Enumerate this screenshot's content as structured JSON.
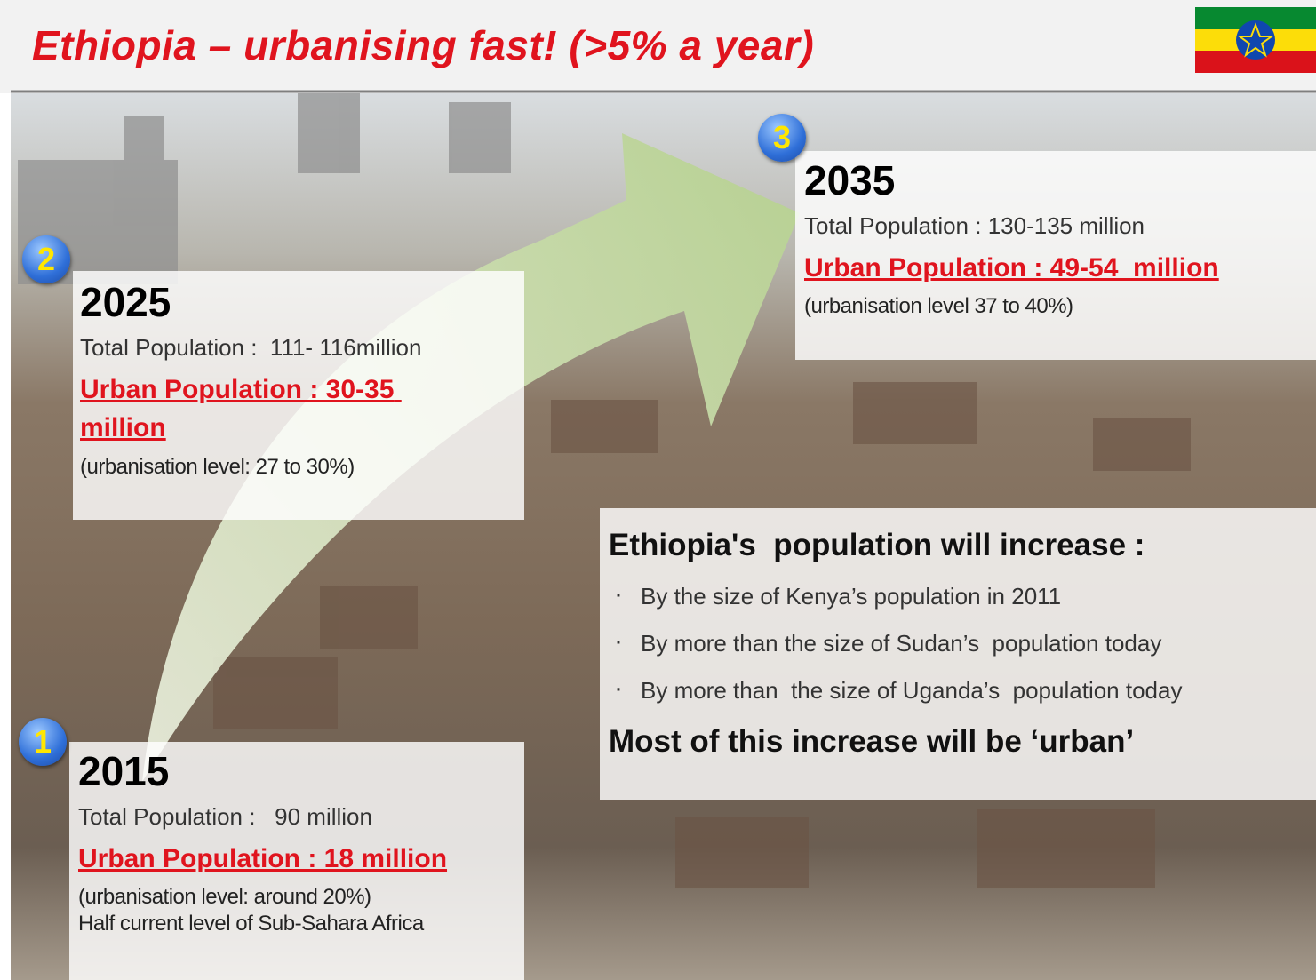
{
  "header": {
    "title": "Ethiopia – urbanising fast! (>5% a year)"
  },
  "milestones": [
    {
      "number": "1",
      "year": "2015",
      "total_population": "Total Population :   90 million",
      "urban_population": "Urban Population : 18 million",
      "notes": [
        "(urbanisation level: around 20%)",
        "Half current level of Sub-Sahara Africa"
      ]
    },
    {
      "number": "2",
      "year": "2025",
      "total_population": "Total Population :  111- 116million",
      "urban_population": "Urban Population : 30-35 million",
      "notes": [
        "(urbanisation level: 27 to 30%)"
      ]
    },
    {
      "number": "3",
      "year": "2035",
      "total_population": "Total Population : 130-135 million",
      "urban_population": "Urban Population : 49-54  million",
      "notes": [
        "(urbanisation level 37 to 40%)"
      ]
    }
  ],
  "summary": {
    "heading": "Ethiopia's  population will increase :",
    "bullets": [
      "By the size of Kenya’s population in 2011",
      "By more than the size of Sudan’s  population today",
      "By more than  the size of Uganda’s  population today"
    ],
    "conclusion": "Most of this increase will be ‘urban’"
  }
}
